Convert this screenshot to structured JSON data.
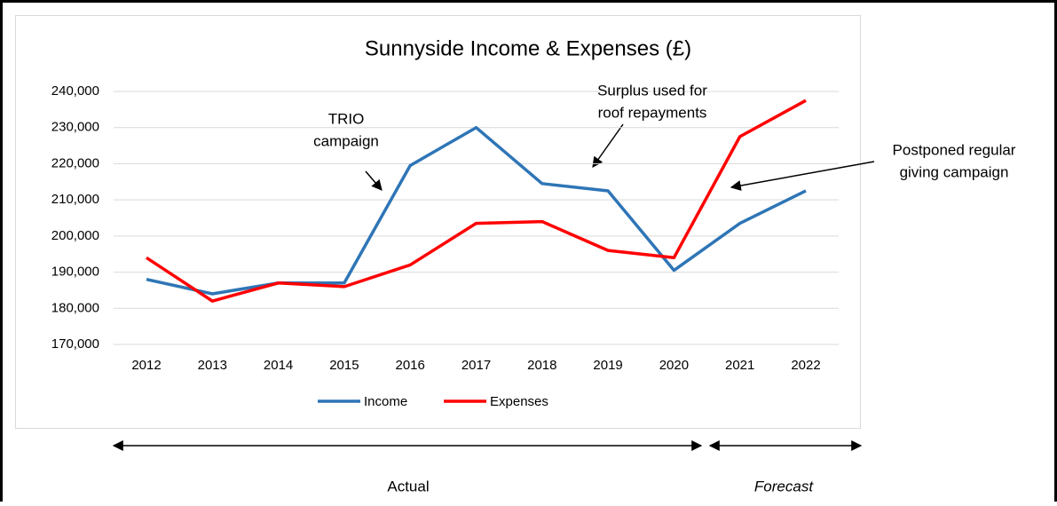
{
  "chart_data": {
    "type": "line",
    "title": "Sunnyside Income & Expenses (£)",
    "categories": [
      "2012",
      "2013",
      "2014",
      "2015",
      "2016",
      "2017",
      "2018",
      "2019",
      "2020",
      "2021",
      "2022"
    ],
    "series": [
      {
        "name": "Income",
        "color": "#2e75b6",
        "values": [
          188000,
          184000,
          187000,
          187000,
          219500,
          230000,
          214500,
          212500,
          190500,
          203500,
          212500
        ]
      },
      {
        "name": "Expenses",
        "color": "#ff0000",
        "values": [
          194000,
          182000,
          187000,
          186000,
          192000,
          203500,
          204000,
          196000,
          194000,
          227500,
          237500
        ]
      }
    ],
    "ylim": [
      170000,
      240000
    ],
    "yticks": [
      {
        "value": 170000,
        "label": "170,000"
      },
      {
        "value": 180000,
        "label": "180,000"
      },
      {
        "value": 190000,
        "label": "190,000"
      },
      {
        "value": 200000,
        "label": "200,000"
      },
      {
        "value": 210000,
        "label": "210,000"
      },
      {
        "value": 220000,
        "label": "220,000"
      },
      {
        "value": 230000,
        "label": "230,000"
      },
      {
        "value": 240000,
        "label": "240,000"
      }
    ],
    "grid": true,
    "legend": "bottom",
    "annotations": [
      {
        "lines": [
          "TRIO",
          "campaign"
        ]
      },
      {
        "lines": [
          "Surplus used for",
          "roof repayments"
        ]
      },
      {
        "lines": [
          "Postponed regular",
          "giving campaign"
        ]
      }
    ],
    "periods": [
      "Actual",
      "Forecast"
    ]
  }
}
